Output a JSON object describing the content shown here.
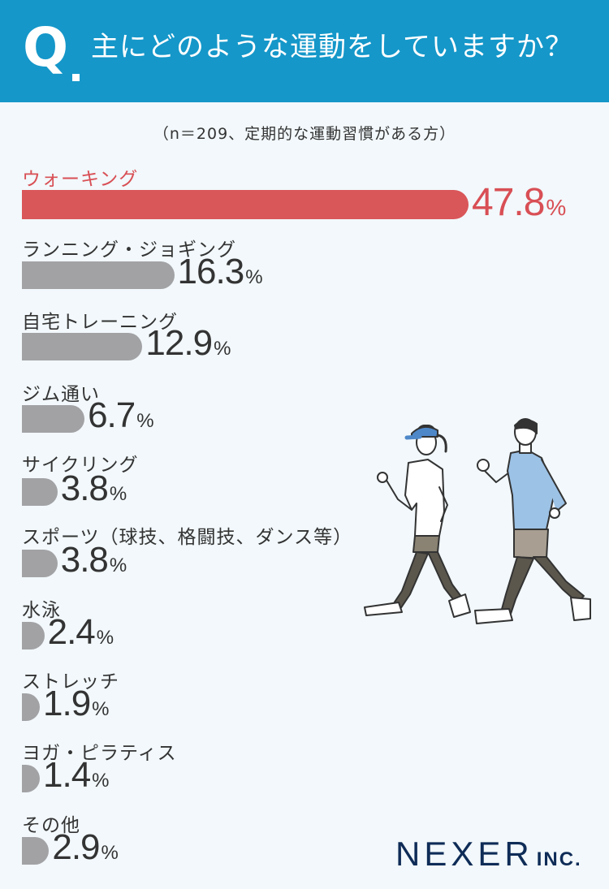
{
  "header": {
    "q": "Q",
    "question": "主にどのような運動をしていますか？"
  },
  "sample_note": "（n＝209、定期的な運動習慣がある方）",
  "chart_data": {
    "type": "bar",
    "orientation": "horizontal",
    "title": "主にどのような運動をしていますか？",
    "subtitle": "（n＝209、定期的な運動習慣がある方）",
    "unit": "%",
    "categories": [
      "ウォーキング",
      "ランニング・ジョギング",
      "自宅トレーニング",
      "ジム通い",
      "サイクリング",
      "スポーツ（球技、格闘技、ダンス等）",
      "水泳",
      "ストレッチ",
      "ヨガ・ピラティス",
      "その他"
    ],
    "values": [
      47.8,
      16.3,
      12.9,
      6.7,
      3.8,
      3.8,
      2.4,
      1.9,
      1.4,
      2.9
    ],
    "value_labels": [
      "47.8",
      "16.3",
      "12.9",
      "6.7",
      "3.8",
      "3.8",
      "2.4",
      "1.9",
      "1.4",
      "2.9"
    ],
    "percent_sign": "%",
    "highlight_color": "#d95659",
    "bar_color": "#a2a2a5"
  },
  "colors": {
    "header": "#1597c9",
    "background": "#f2f8fb",
    "logo": "#0f2c57"
  },
  "illustration": "walking-couple-illustration",
  "logo": {
    "main": "NEXER",
    "suffix": "INC."
  }
}
